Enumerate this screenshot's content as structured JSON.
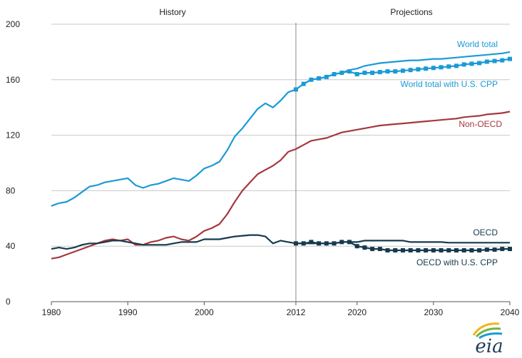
{
  "chart_data": {
    "type": "line",
    "title": "",
    "xlabel": "",
    "ylabel": "",
    "xlim": [
      1980,
      2040
    ],
    "ylim": [
      0,
      200
    ],
    "grid": "horizontal",
    "x_ticks": [
      1980,
      1990,
      2000,
      2012,
      2020,
      2030,
      2040
    ],
    "y_ticks": [
      0,
      40,
      80,
      120,
      160,
      200
    ],
    "divider_year": 2012,
    "region_labels": {
      "history": "History",
      "projections": "Projections"
    },
    "colors": {
      "world": "#1b9ad6",
      "non_oecd": "#a5383d",
      "oecd": "#153a4f",
      "grid": "#c8c8c8",
      "axis": "#555555",
      "divider": "#888888"
    },
    "series": [
      {
        "name": "World total",
        "color": "#1b9ad6",
        "marker": "none",
        "x": [
          1980,
          1981,
          1982,
          1983,
          1984,
          1985,
          1986,
          1987,
          1988,
          1989,
          1990,
          1991,
          1992,
          1993,
          1994,
          1995,
          1996,
          1997,
          1998,
          1999,
          2000,
          2001,
          2002,
          2003,
          2004,
          2005,
          2006,
          2007,
          2008,
          2009,
          2010,
          2011,
          2012,
          2013,
          2014,
          2015,
          2016,
          2017,
          2018,
          2019,
          2020,
          2021,
          2022,
          2023,
          2024,
          2025,
          2026,
          2027,
          2028,
          2029,
          2030,
          2031,
          2032,
          2033,
          2034,
          2035,
          2036,
          2037,
          2038,
          2039,
          2040
        ],
        "values": [
          69,
          71,
          72,
          75,
          79,
          83,
          84,
          86,
          87,
          88,
          89,
          84,
          82,
          84,
          85,
          87,
          89,
          88,
          87,
          91,
          96,
          98,
          101,
          109,
          119,
          125,
          132,
          139,
          143,
          140,
          145,
          151,
          153,
          157,
          160,
          161,
          162,
          164,
          165,
          167,
          168,
          170,
          171,
          172,
          172.5,
          173,
          173.5,
          174,
          174,
          174.5,
          175,
          175,
          175.5,
          176,
          176.5,
          177,
          177.5,
          178,
          178.5,
          179,
          180
        ]
      },
      {
        "name": "World total with U.S. CPP",
        "color": "#1b9ad6",
        "marker": "square",
        "x": [
          2012,
          2013,
          2014,
          2015,
          2016,
          2017,
          2018,
          2019,
          2020,
          2021,
          2022,
          2023,
          2024,
          2025,
          2026,
          2027,
          2028,
          2029,
          2030,
          2031,
          2032,
          2033,
          2034,
          2035,
          2036,
          2037,
          2038,
          2039,
          2040
        ],
        "values": [
          153,
          157,
          160,
          161,
          162,
          164,
          165,
          166,
          164,
          165,
          165,
          165.5,
          166,
          166,
          166.5,
          167,
          167.5,
          168,
          168.5,
          169,
          169.5,
          170,
          171,
          171.5,
          172,
          173,
          173.5,
          174,
          175
        ]
      },
      {
        "name": "Non-OECD",
        "color": "#a5383d",
        "marker": "none",
        "x": [
          1980,
          1981,
          1982,
          1983,
          1984,
          1985,
          1986,
          1987,
          1988,
          1989,
          1990,
          1991,
          1992,
          1993,
          1994,
          1995,
          1996,
          1997,
          1998,
          1999,
          2000,
          2001,
          2002,
          2003,
          2004,
          2005,
          2006,
          2007,
          2008,
          2009,
          2010,
          2011,
          2012,
          2013,
          2014,
          2015,
          2016,
          2017,
          2018,
          2019,
          2020,
          2021,
          2022,
          2023,
          2024,
          2025,
          2026,
          2027,
          2028,
          2029,
          2030,
          2031,
          2032,
          2033,
          2034,
          2035,
          2036,
          2037,
          2038,
          2039,
          2040
        ],
        "values": [
          31,
          32,
          34,
          36,
          38,
          40,
          42,
          44,
          45,
          44,
          45,
          41,
          41,
          43,
          44,
          46,
          47,
          45,
          44,
          47,
          51,
          53,
          56,
          63,
          72,
          80,
          86,
          92,
          95,
          98,
          102,
          108,
          110,
          113,
          116,
          117,
          118,
          120,
          122,
          123,
          124,
          125,
          126,
          127,
          127.5,
          128,
          128.5,
          129,
          129.5,
          130,
          130.5,
          131,
          131.5,
          132,
          133,
          133.5,
          134,
          135,
          135.5,
          136,
          137
        ]
      },
      {
        "name": "OECD",
        "color": "#153a4f",
        "marker": "none",
        "x": [
          1980,
          1981,
          1982,
          1983,
          1984,
          1985,
          1986,
          1987,
          1988,
          1989,
          1990,
          1991,
          1992,
          1993,
          1994,
          1995,
          1996,
          1997,
          1998,
          1999,
          2000,
          2001,
          2002,
          2003,
          2004,
          2005,
          2006,
          2007,
          2008,
          2009,
          2010,
          2011,
          2012,
          2013,
          2014,
          2015,
          2016,
          2017,
          2018,
          2019,
          2020,
          2021,
          2022,
          2023,
          2024,
          2025,
          2026,
          2027,
          2028,
          2029,
          2030,
          2031,
          2032,
          2033,
          2034,
          2035,
          2036,
          2037,
          2038,
          2039,
          2040
        ],
        "values": [
          38,
          39,
          38,
          39,
          41,
          42,
          42,
          43,
          44,
          44,
          43,
          42,
          41,
          41,
          41,
          41,
          42,
          43,
          43,
          43,
          45,
          45,
          45,
          46,
          47,
          47.5,
          48,
          48,
          47,
          42,
          44,
          43,
          42,
          42,
          42,
          42,
          42,
          42,
          43,
          43,
          43,
          44,
          44,
          44,
          44,
          44,
          44,
          43,
          43,
          43,
          43,
          43,
          42.5,
          42.5,
          42.5,
          42.5,
          42.5,
          42.5,
          42.5,
          42.5,
          42.5
        ]
      },
      {
        "name": "OECD with U.S. CPP",
        "color": "#153a4f",
        "marker": "square",
        "x": [
          2012,
          2013,
          2014,
          2015,
          2016,
          2017,
          2018,
          2019,
          2020,
          2021,
          2022,
          2023,
          2024,
          2025,
          2026,
          2027,
          2028,
          2029,
          2030,
          2031,
          2032,
          2033,
          2034,
          2035,
          2036,
          2037,
          2038,
          2039,
          2040
        ],
        "values": [
          42,
          42,
          43,
          42,
          42,
          42,
          43,
          43,
          40,
          39,
          38,
          38,
          37,
          37,
          37,
          37,
          37,
          37,
          37,
          37,
          37,
          37,
          37,
          37,
          37,
          37.5,
          37.5,
          38,
          38
        ]
      }
    ]
  },
  "logo": {
    "text": "eia"
  }
}
